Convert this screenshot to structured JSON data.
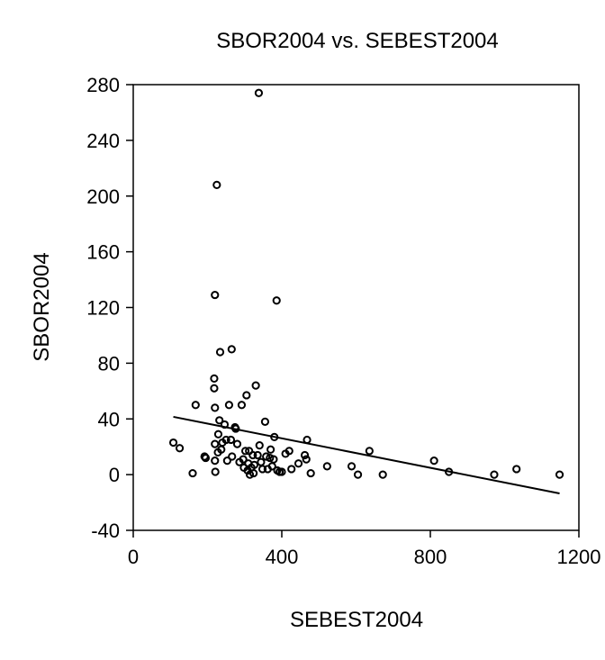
{
  "chart_data": {
    "type": "scatter",
    "title": "SBOR2004 vs. SEBEST2004",
    "xlabel": "SEBEST2004",
    "ylabel": "SBOR2004",
    "xlim": [
      0,
      1200
    ],
    "ylim": [
      -40,
      280
    ],
    "x_ticks": [
      "0",
      "400",
      "800",
      "1200"
    ],
    "y_ticks": [
      "-40",
      "0",
      "40",
      "80",
      "120",
      "160",
      "200",
      "240",
      "280"
    ],
    "grid": false,
    "legend": "none",
    "points": [
      [
        108,
        23
      ],
      [
        125,
        19
      ],
      [
        160,
        1
      ],
      [
        168,
        50
      ],
      [
        192,
        13
      ],
      [
        195,
        12
      ],
      [
        218,
        62
      ],
      [
        218,
        69
      ],
      [
        220,
        129
      ],
      [
        220,
        48
      ],
      [
        220,
        22
      ],
      [
        220,
        10
      ],
      [
        221,
        2
      ],
      [
        225,
        208
      ],
      [
        228,
        16
      ],
      [
        229,
        29
      ],
      [
        232,
        39
      ],
      [
        234,
        88
      ],
      [
        237,
        18
      ],
      [
        240,
        23
      ],
      [
        246,
        36
      ],
      [
        250,
        25
      ],
      [
        253,
        10
      ],
      [
        258,
        50
      ],
      [
        263,
        25
      ],
      [
        265,
        90
      ],
      [
        266,
        13
      ],
      [
        274,
        34
      ],
      [
        276,
        33
      ],
      [
        280,
        22
      ],
      [
        286,
        9
      ],
      [
        292,
        50
      ],
      [
        296,
        11
      ],
      [
        298,
        5
      ],
      [
        302,
        17
      ],
      [
        305,
        57
      ],
      [
        308,
        3
      ],
      [
        310,
        8
      ],
      [
        312,
        17
      ],
      [
        314,
        0
      ],
      [
        318,
        5
      ],
      [
        322,
        14
      ],
      [
        324,
        1
      ],
      [
        326,
        7
      ],
      [
        330,
        64
      ],
      [
        335,
        14
      ],
      [
        338,
        274
      ],
      [
        340,
        21
      ],
      [
        344,
        9
      ],
      [
        348,
        4
      ],
      [
        355,
        38
      ],
      [
        358,
        13
      ],
      [
        362,
        4
      ],
      [
        368,
        12
      ],
      [
        370,
        18
      ],
      [
        374,
        6
      ],
      [
        378,
        11
      ],
      [
        380,
        27
      ],
      [
        386,
        125
      ],
      [
        388,
        3
      ],
      [
        394,
        2
      ],
      [
        400,
        2
      ],
      [
        410,
        15
      ],
      [
        420,
        17
      ],
      [
        426,
        4
      ],
      [
        445,
        8
      ],
      [
        462,
        14
      ],
      [
        466,
        11
      ],
      [
        468,
        25
      ],
      [
        478,
        1
      ],
      [
        522,
        6
      ],
      [
        588,
        6
      ],
      [
        605,
        0
      ],
      [
        636,
        17
      ],
      [
        672,
        0
      ],
      [
        810,
        10
      ],
      [
        850,
        2
      ],
      [
        972,
        0
      ],
      [
        1032,
        4
      ],
      [
        1148,
        0
      ]
    ],
    "fit_line": {
      "x": [
        108,
        1148
      ],
      "y": [
        41.5,
        -13.5
      ]
    },
    "marker": "open-circle",
    "colors": {
      "marker": "#000000",
      "line": "#000000",
      "axis": "#000000"
    }
  }
}
